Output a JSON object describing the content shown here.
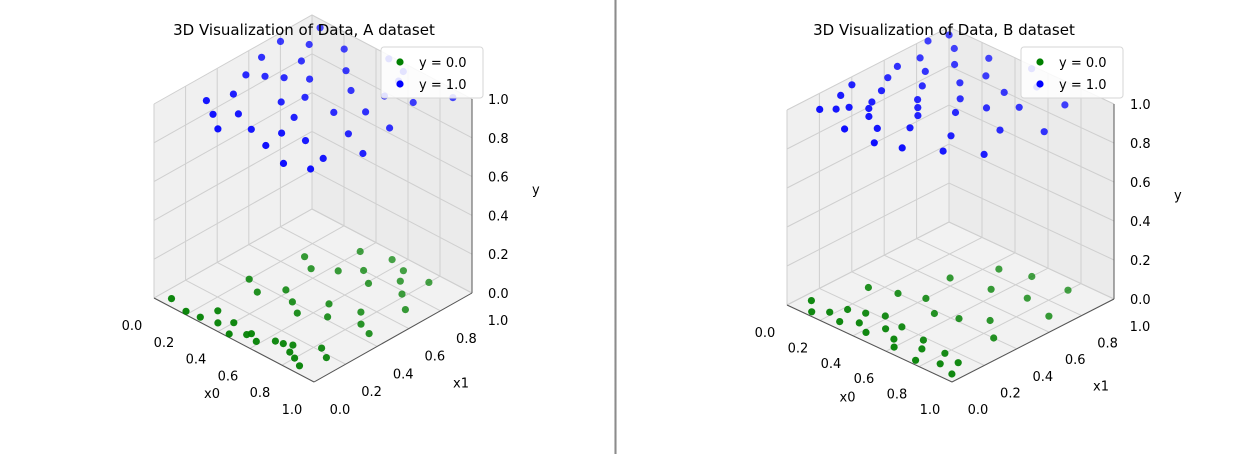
{
  "colors": {
    "class0": "#008000",
    "class1": "#0000ff"
  },
  "chart_data": [
    {
      "type": "scatter",
      "title": "3D Visualization of Data, A dataset",
      "xlabel": "x0",
      "ylabel": "x1",
      "zlabel": "y",
      "xlim": [
        0,
        1
      ],
      "ylim": [
        0,
        1
      ],
      "zlim": [
        0,
        1
      ],
      "xticks": [
        "0.0",
        "0.2",
        "0.4",
        "0.6",
        "0.8",
        "1.0"
      ],
      "yticks": [
        "0.0",
        "0.2",
        "0.4",
        "0.6",
        "0.8",
        "1.0"
      ],
      "zticks": [
        "0.0",
        "0.2",
        "0.4",
        "0.6",
        "0.8",
        "1.0"
      ],
      "grid": true,
      "legend": {
        "location": "upper right",
        "entries": [
          "y = 0.0",
          "y = 1.0"
        ]
      },
      "series": [
        {
          "name": "y = 0.0",
          "points": [
            [
              0.06,
              0.05,
              0
            ],
            [
              0.18,
              0.02,
              0
            ],
            [
              0.26,
              0.03,
              0
            ],
            [
              0.28,
              0.12,
              0
            ],
            [
              0.35,
              0.05,
              0
            ],
            [
              0.4,
              0.1,
              0
            ],
            [
              0.45,
              0.02,
              0
            ],
            [
              0.51,
              0.07,
              0
            ],
            [
              0.52,
              0.09,
              0
            ],
            [
              0.58,
              0.06,
              0
            ],
            [
              0.64,
              0.12,
              0
            ],
            [
              0.68,
              0.13,
              0
            ],
            [
              0.72,
              0.15,
              0
            ],
            [
              0.75,
              0.1,
              0
            ],
            [
              0.8,
              0.08,
              0
            ],
            [
              0.83,
              0.22,
              0
            ],
            [
              0.86,
              0.05,
              0
            ],
            [
              0.9,
              0.18,
              0
            ],
            [
              0.2,
              0.4,
              0
            ],
            [
              0.3,
              0.35,
              0
            ],
            [
              0.38,
              0.45,
              0
            ],
            [
              0.47,
              0.4,
              0
            ],
            [
              0.55,
              0.35,
              0
            ],
            [
              0.6,
              0.5,
              0
            ],
            [
              0.67,
              0.42,
              0
            ],
            [
              0.75,
              0.55,
              0
            ],
            [
              0.82,
              0.48,
              0
            ],
            [
              0.9,
              0.45,
              0
            ],
            [
              0.25,
              0.7,
              0
            ],
            [
              0.34,
              0.65,
              0
            ],
            [
              0.44,
              0.72,
              0
            ],
            [
              0.52,
              0.8,
              0
            ],
            [
              0.61,
              0.74,
              0
            ],
            [
              0.7,
              0.85,
              0
            ],
            [
              0.78,
              0.78,
              0
            ],
            [
              0.88,
              0.7,
              0
            ],
            [
              0.4,
              0.9,
              0
            ],
            [
              0.55,
              0.95,
              0
            ],
            [
              0.65,
              0.92,
              0
            ],
            [
              0.8,
              0.93,
              0
            ]
          ]
        },
        {
          "name": "y = 1.0",
          "points": [
            [
              0.05,
              0.75,
              1
            ],
            [
              0.1,
              0.95,
              1
            ],
            [
              0.08,
              0.6,
              1
            ],
            [
              0.13,
              0.45,
              1
            ],
            [
              0.16,
              0.82,
              1
            ],
            [
              0.2,
              0.3,
              1
            ],
            [
              0.23,
              0.7,
              1
            ],
            [
              0.27,
              0.55,
              1
            ],
            [
              0.3,
              0.9,
              1
            ],
            [
              0.33,
              0.2,
              1
            ],
            [
              0.36,
              0.62,
              1
            ],
            [
              0.4,
              0.4,
              1
            ],
            [
              0.43,
              0.78,
              1
            ],
            [
              0.46,
              0.15,
              1
            ],
            [
              0.5,
              0.98,
              1
            ],
            [
              0.53,
              0.35,
              1
            ],
            [
              0.56,
              0.68,
              1
            ],
            [
              0.6,
              0.1,
              1
            ],
            [
              0.63,
              0.5,
              1
            ],
            [
              0.66,
              0.88,
              1
            ],
            [
              0.7,
              0.25,
              1
            ],
            [
              0.73,
              0.6,
              1
            ],
            [
              0.76,
              0.05,
              1
            ],
            [
              0.8,
              0.42,
              1
            ],
            [
              0.83,
              0.8,
              1
            ],
            [
              0.86,
              0.2,
              1
            ],
            [
              0.9,
              0.58,
              1
            ],
            [
              0.93,
              0.95,
              1
            ],
            [
              0.96,
              0.35,
              1
            ],
            [
              0.35,
              0.05,
              1
            ],
            [
              0.25,
              0.12,
              1
            ],
            [
              0.15,
              0.18,
              1
            ],
            [
              0.58,
              0.22,
              1
            ],
            [
              0.7,
              0.75,
              1
            ],
            [
              0.45,
              0.5,
              1
            ],
            [
              0.88,
              0.1,
              1
            ],
            [
              0.2,
              0.5,
              1
            ],
            [
              0.62,
              0.95,
              1
            ]
          ]
        }
      ]
    },
    {
      "type": "scatter",
      "title": "3D Visualization of Data, B dataset",
      "xlabel": "x0",
      "ylabel": "x1",
      "zlabel": "y",
      "xlim": [
        0,
        1
      ],
      "ylim": [
        0,
        1
      ],
      "zlim": [
        0,
        1
      ],
      "xticks": [
        "0.0",
        "0.2",
        "0.4",
        "0.6",
        "0.8",
        "1.0"
      ],
      "yticks": [
        "0.0",
        "0.2",
        "0.4",
        "0.6",
        "0.8",
        "1.0"
      ],
      "zticks": [
        "0.0",
        "0.2",
        "0.4",
        "0.6",
        "0.8",
        "1.0"
      ],
      "grid": true,
      "legend": {
        "location": "upper right",
        "entries": [
          "y = 0.0",
          "y = 1.0"
        ]
      },
      "series": [
        {
          "name": "y = 0.0",
          "points": [
            [
              0.05,
              0.1,
              0
            ],
            [
              0.12,
              0.03,
              0
            ],
            [
              0.18,
              0.08,
              0
            ],
            [
              0.22,
              0.15,
              0
            ],
            [
              0.27,
              0.05,
              0
            ],
            [
              0.3,
              0.18,
              0
            ],
            [
              0.34,
              0.1,
              0
            ],
            [
              0.38,
              0.22,
              0
            ],
            [
              0.42,
              0.06,
              0
            ],
            [
              0.46,
              0.14,
              0
            ],
            [
              0.5,
              0.2,
              0
            ],
            [
              0.55,
              0.1,
              0
            ],
            [
              0.6,
              0.05,
              0
            ],
            [
              0.65,
              0.18,
              0
            ],
            [
              0.7,
              0.12,
              0
            ],
            [
              0.75,
              0.03,
              0
            ],
            [
              0.8,
              0.16,
              0
            ],
            [
              0.85,
              0.08,
              0
            ],
            [
              0.9,
              0.14,
              0
            ],
            [
              0.95,
              0.05,
              0
            ],
            [
              0.15,
              0.35,
              0
            ],
            [
              0.28,
              0.4,
              0
            ],
            [
              0.4,
              0.45,
              0
            ],
            [
              0.52,
              0.38,
              0
            ],
            [
              0.63,
              0.42,
              0
            ],
            [
              0.74,
              0.5,
              0
            ],
            [
              0.86,
              0.4,
              0
            ],
            [
              0.35,
              0.65,
              0
            ],
            [
              0.55,
              0.7,
              0
            ],
            [
              0.72,
              0.75,
              0
            ],
            [
              0.9,
              0.7,
              0
            ],
            [
              0.6,
              0.9,
              0
            ],
            [
              0.8,
              0.92,
              0
            ],
            [
              0.45,
              0.85,
              0
            ]
          ]
        },
        {
          "name": "y = 1.0",
          "points": [
            [
              0.02,
              0.85,
              1
            ],
            [
              0.05,
              0.95,
              1
            ],
            [
              0.08,
              0.6,
              1
            ],
            [
              0.1,
              0.72,
              1
            ],
            [
              0.12,
              0.5,
              1
            ],
            [
              0.15,
              0.88,
              1
            ],
            [
              0.18,
              0.4,
              1
            ],
            [
              0.2,
              0.65,
              1
            ],
            [
              0.22,
              0.3,
              1
            ],
            [
              0.25,
              0.78,
              1
            ],
            [
              0.28,
              0.55,
              1
            ],
            [
              0.3,
              0.2,
              1
            ],
            [
              0.32,
              0.92,
              1
            ],
            [
              0.35,
              0.45,
              1
            ],
            [
              0.38,
              0.68,
              1
            ],
            [
              0.4,
              0.15,
              1
            ],
            [
              0.42,
              0.8,
              1
            ],
            [
              0.45,
              0.35,
              1
            ],
            [
              0.48,
              0.58,
              1
            ],
            [
              0.5,
              0.25,
              1
            ],
            [
              0.52,
              0.98,
              1
            ],
            [
              0.55,
              0.48,
              1
            ],
            [
              0.58,
              0.75,
              1
            ],
            [
              0.6,
              0.1,
              1
            ],
            [
              0.62,
              0.6,
              1
            ],
            [
              0.65,
              0.88,
              1
            ],
            [
              0.68,
              0.32,
              1
            ],
            [
              0.72,
              0.7,
              1
            ],
            [
              0.75,
              0.2,
              1
            ],
            [
              0.8,
              0.5,
              1
            ],
            [
              0.85,
              0.85,
              1
            ],
            [
              0.9,
              0.3,
              1
            ],
            [
              0.95,
              0.62,
              1
            ],
            [
              0.15,
              0.15,
              1
            ],
            [
              0.1,
              0.1,
              1
            ],
            [
              0.3,
              0.05,
              1
            ],
            [
              0.25,
              0.25,
              1
            ],
            [
              0.05,
              0.35,
              1
            ],
            [
              0.18,
              0.2,
              1
            ],
            [
              0.4,
              0.4,
              1
            ],
            [
              0.48,
              0.05,
              1
            ],
            [
              0.08,
              0.25,
              1
            ]
          ]
        }
      ]
    }
  ]
}
